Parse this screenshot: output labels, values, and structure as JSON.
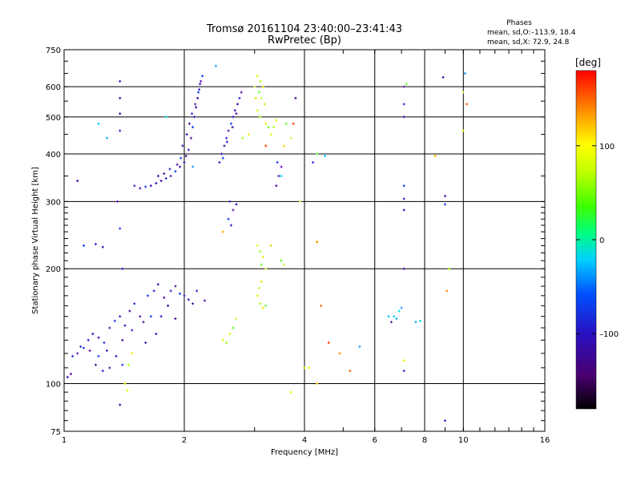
{
  "chart_data": {
    "type": "scatter",
    "title": "Tromsø 20161104 23:40:00–23:41:43",
    "subtitle": "RwPretec (Bp)",
    "xlabel": "Frequency [MHz]",
    "ylabel": "Stationary phase Virtual Height [km]",
    "x_scale": "log",
    "y_scale": "log",
    "xlim": [
      1,
      16
    ],
    "ylim": [
      75,
      750
    ],
    "x_ticks": [
      1,
      2,
      4,
      6,
      8,
      10,
      16
    ],
    "x_tick_labels": [
      "1",
      "2",
      "4",
      "6",
      "8",
      "10",
      "16"
    ],
    "y_ticks": [
      75,
      100,
      200,
      300,
      400,
      500,
      600,
      750
    ],
    "y_tick_labels": [
      "75",
      "100",
      "200",
      "300",
      "400",
      "500",
      "600",
      "750"
    ],
    "grid": true,
    "stats": {
      "title": "Phases",
      "line_o": "mean, sd,O:–113.9, 18.4",
      "line_x": "mean, sd,X:  72.9, 24.8"
    },
    "colorbar": {
      "label": "[deg]",
      "range": [
        -180,
        180
      ],
      "ticks": [
        100,
        0,
        -100
      ],
      "tick_labels": [
        "100",
        "0",
        "–100"
      ]
    },
    "series": [
      {
        "color_hint": "purple-blue (phase ≈ −120)",
        "points": [
          [
            1.02,
            104
          ],
          [
            1.04,
            106
          ],
          [
            1.05,
            118
          ],
          [
            1.08,
            120
          ],
          [
            1.12,
            124
          ],
          [
            1.15,
            130
          ],
          [
            1.18,
            135
          ],
          [
            1.22,
            132
          ],
          [
            1.26,
            128
          ],
          [
            1.3,
            140
          ],
          [
            1.34,
            146
          ],
          [
            1.38,
            150
          ],
          [
            1.42,
            142
          ],
          [
            1.46,
            155
          ],
          [
            1.5,
            162
          ],
          [
            1.55,
            150
          ],
          [
            1.62,
            170
          ],
          [
            1.68,
            175
          ],
          [
            1.72,
            182
          ],
          [
            1.78,
            168
          ],
          [
            1.85,
            175
          ],
          [
            1.9,
            180
          ],
          [
            1.95,
            172
          ],
          [
            2.0,
            170
          ],
          [
            2.05,
            166
          ],
          [
            2.1,
            162
          ],
          [
            1.1,
            125
          ],
          [
            1.16,
            122
          ],
          [
            1.22,
            118
          ],
          [
            1.28,
            122
          ],
          [
            1.35,
            118
          ],
          [
            1.4,
            130
          ],
          [
            1.48,
            138
          ],
          [
            1.58,
            145
          ],
          [
            1.65,
            150
          ],
          [
            1.75,
            150
          ],
          [
            1.82,
            160
          ],
          [
            1.2,
            112
          ],
          [
            1.25,
            108
          ],
          [
            1.3,
            110
          ],
          [
            1.4,
            112
          ],
          [
            1.6,
            128
          ],
          [
            1.7,
            135
          ],
          [
            1.9,
            148
          ],
          [
            2.15,
            175
          ],
          [
            2.25,
            165
          ],
          [
            1.12,
            230
          ],
          [
            1.2,
            232
          ],
          [
            1.25,
            228
          ],
          [
            1.08,
            340
          ],
          [
            1.5,
            330
          ],
          [
            1.55,
            325
          ],
          [
            1.6,
            328
          ],
          [
            1.65,
            330
          ],
          [
            1.7,
            335
          ],
          [
            1.75,
            340
          ],
          [
            1.8,
            345
          ],
          [
            1.85,
            350
          ],
          [
            1.9,
            360
          ],
          [
            1.95,
            370
          ],
          [
            2.0,
            380
          ],
          [
            2.02,
            395
          ],
          [
            2.05,
            410
          ],
          [
            2.08,
            440
          ],
          [
            2.1,
            470
          ],
          [
            2.12,
            500
          ],
          [
            2.14,
            530
          ],
          [
            2.16,
            560
          ],
          [
            2.18,
            590
          ],
          [
            2.2,
            620
          ],
          [
            2.22,
            640
          ],
          [
            1.98,
            420
          ],
          [
            2.03,
            450
          ],
          [
            2.06,
            480
          ],
          [
            2.09,
            510
          ],
          [
            2.13,
            540
          ],
          [
            2.17,
            580
          ],
          [
            2.19,
            610
          ],
          [
            1.72,
            350
          ],
          [
            1.78,
            355
          ],
          [
            1.84,
            365
          ],
          [
            1.92,
            375
          ],
          [
            1.96,
            390
          ],
          [
            2.45,
            380
          ],
          [
            2.48,
            400
          ],
          [
            2.52,
            420
          ],
          [
            2.55,
            440
          ],
          [
            2.58,
            460
          ],
          [
            2.62,
            480
          ],
          [
            2.65,
            500
          ],
          [
            2.68,
            520
          ],
          [
            2.72,
            540
          ],
          [
            2.75,
            560
          ],
          [
            2.78,
            580
          ],
          [
            2.5,
            390
          ],
          [
            2.56,
            430
          ],
          [
            2.64,
            470
          ],
          [
            2.7,
            510
          ],
          [
            2.6,
            300
          ],
          [
            2.65,
            285
          ],
          [
            2.58,
            270
          ],
          [
            2.62,
            260
          ],
          [
            2.7,
            295
          ],
          [
            3.4,
            330
          ],
          [
            3.45,
            350
          ],
          [
            3.5,
            370
          ],
          [
            3.42,
            380
          ],
          [
            1.38,
            620
          ],
          [
            1.38,
            560
          ],
          [
            1.38,
            510
          ],
          [
            1.38,
            460
          ],
          [
            1.36,
            300
          ],
          [
            1.38,
            255
          ],
          [
            1.4,
            200
          ],
          [
            1.38,
            88
          ],
          [
            7.1,
            500
          ],
          [
            7.1,
            540
          ],
          [
            7.1,
            600
          ],
          [
            7.1,
            330
          ],
          [
            7.1,
            305
          ],
          [
            7.1,
            285
          ],
          [
            7.1,
            200
          ],
          [
            7.1,
            108
          ],
          [
            9.0,
            310
          ],
          [
            9.0,
            295
          ],
          [
            9.0,
            80
          ],
          [
            8.9,
            635
          ],
          [
            3.8,
            560
          ],
          [
            4.2,
            380
          ],
          [
            6.6,
            145
          ]
        ]
      },
      {
        "color_hint": "yellow-green (phase ≈ +80)",
        "points": [
          [
            3.05,
            640
          ],
          [
            3.1,
            620
          ],
          [
            3.15,
            600
          ],
          [
            3.08,
            580
          ],
          [
            3.12,
            560
          ],
          [
            3.18,
            540
          ],
          [
            3.05,
            520
          ],
          [
            3.1,
            500
          ],
          [
            3.2,
            480
          ],
          [
            3.25,
            470
          ],
          [
            3.0,
            600
          ],
          [
            3.02,
            560
          ],
          [
            3.3,
            450
          ],
          [
            3.35,
            470
          ],
          [
            3.4,
            490
          ],
          [
            3.6,
            480
          ],
          [
            3.7,
            440
          ],
          [
            3.55,
            420
          ],
          [
            3.05,
            230
          ],
          [
            3.1,
            222
          ],
          [
            3.15,
            215
          ],
          [
            3.12,
            205
          ],
          [
            3.2,
            200
          ],
          [
            3.3,
            230
          ],
          [
            3.05,
            170
          ],
          [
            3.1,
            162
          ],
          [
            3.15,
            158
          ],
          [
            3.2,
            160
          ],
          [
            3.08,
            178
          ],
          [
            3.12,
            185
          ],
          [
            2.5,
            130
          ],
          [
            2.55,
            128
          ],
          [
            2.6,
            135
          ],
          [
            2.65,
            140
          ],
          [
            2.7,
            148
          ],
          [
            1.42,
            100
          ],
          [
            1.44,
            96
          ],
          [
            1.45,
            112
          ],
          [
            1.48,
            120
          ],
          [
            3.5,
            210
          ],
          [
            3.55,
            205
          ],
          [
            4.3,
            235
          ],
          [
            4.1,
            110
          ],
          [
            2.8,
            440
          ],
          [
            2.9,
            450
          ],
          [
            4.3,
            400
          ],
          [
            10.0,
            580
          ],
          [
            10.0,
            460
          ],
          [
            8.5,
            395
          ],
          [
            9.2,
            200
          ],
          [
            7.1,
            115
          ],
          [
            7.2,
            610
          ],
          [
            3.9,
            300
          ],
          [
            4.0,
            110
          ],
          [
            3.7,
            95
          ]
        ]
      },
      {
        "color_hint": "cyan (phase ≈ −50)",
        "points": [
          [
            6.7,
            150
          ],
          [
            6.8,
            148
          ],
          [
            6.9,
            155
          ],
          [
            7.0,
            158
          ],
          [
            6.5,
            150
          ],
          [
            7.6,
            145
          ],
          [
            7.8,
            146
          ],
          [
            5.5,
            125
          ],
          [
            4.5,
            395
          ],
          [
            2.4,
            680
          ],
          [
            3.5,
            350
          ],
          [
            10.1,
            650
          ],
          [
            1.22,
            480
          ],
          [
            1.28,
            440
          ],
          [
            1.8,
            500
          ],
          [
            2.1,
            370
          ]
        ]
      },
      {
        "color_hint": "orange-red (phase ≈ +150)",
        "points": [
          [
            4.3,
            235
          ],
          [
            4.4,
            160
          ],
          [
            4.3,
            100
          ],
          [
            4.6,
            128
          ],
          [
            4.9,
            120
          ],
          [
            5.2,
            108
          ],
          [
            2.5,
            250
          ],
          [
            3.2,
            420
          ],
          [
            9.1,
            175
          ],
          [
            10.2,
            540
          ],
          [
            8.5,
            395
          ],
          [
            3.75,
            480
          ]
        ]
      }
    ]
  }
}
